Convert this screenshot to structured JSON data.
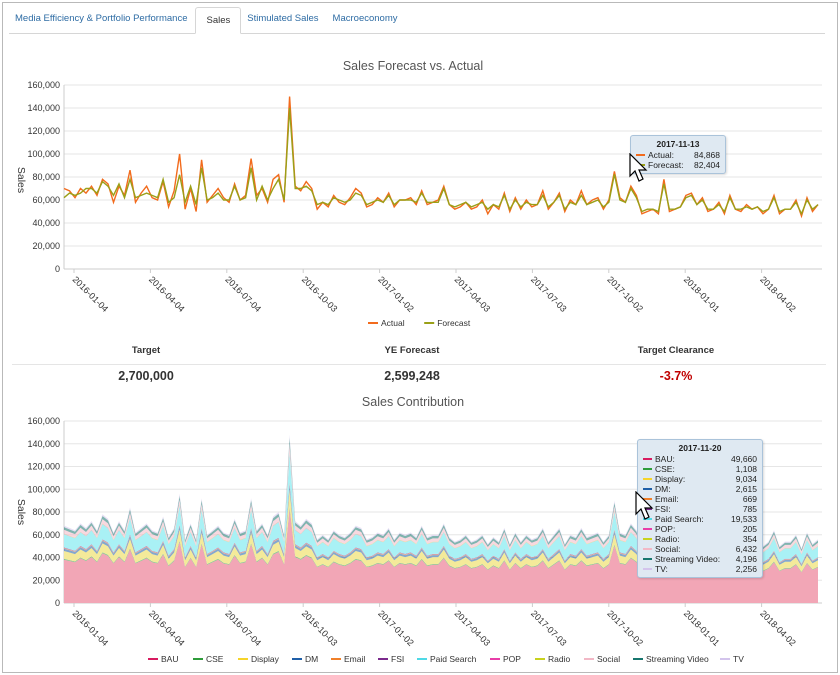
{
  "tabs": [
    {
      "label": "Media Efficiency & Portfolio Performance",
      "active": false
    },
    {
      "label": "Sales",
      "active": true
    },
    {
      "label": "Stimulated Sales",
      "active": false
    },
    {
      "label": "Macroeconomy",
      "active": false
    }
  ],
  "kpis": {
    "target_label": "Target",
    "target_value": "2,700,000",
    "ye_label": "YE Forecast",
    "ye_value": "2,599,248",
    "clearance_label": "Target Clearance",
    "clearance_value": "-3.7%",
    "clearance_color": "#c00000"
  },
  "chart_data": [
    {
      "type": "line",
      "title": "Sales Forecast vs. Actual",
      "ylabel": "Sales",
      "xlabel": "",
      "ylim": [
        0,
        160000
      ],
      "yticks": [
        0,
        20000,
        40000,
        60000,
        80000,
        100000,
        120000,
        140000,
        160000
      ],
      "ytick_labels": [
        "0",
        "20,000",
        "40,000",
        "60,000",
        "80,000",
        "100,000",
        "120,000",
        "140,000",
        "160,000"
      ],
      "xtick_labels": [
        "2016-01-04",
        "2016-04-04",
        "2016-07-04",
        "2016-10-03",
        "2017-01-02",
        "2017-04-03",
        "2017-07-03",
        "2017-10-02",
        "2018-01-01",
        "2018-04-02"
      ],
      "grid": true,
      "legend": "bottom-center",
      "series": [
        {
          "name": "Actual",
          "color": "#f26b1d",
          "values": [
            70000,
            68000,
            62000,
            70000,
            66000,
            72000,
            64000,
            78000,
            74000,
            58000,
            72000,
            64000,
            86000,
            58000,
            66000,
            72000,
            62000,
            60000,
            76000,
            54000,
            68000,
            100000,
            52000,
            70000,
            50000,
            95000,
            58000,
            64000,
            70000,
            62000,
            58000,
            74000,
            60000,
            64000,
            96000,
            64000,
            70000,
            58000,
            78000,
            82000,
            58000,
            150000,
            72000,
            68000,
            76000,
            70000,
            52000,
            58000,
            54000,
            64000,
            58000,
            56000,
            62000,
            70000,
            66000,
            54000,
            56000,
            62000,
            58000,
            66000,
            54000,
            60000,
            60000,
            62000,
            56000,
            68000,
            56000,
            58000,
            60000,
            72000,
            56000,
            52000,
            54000,
            58000,
            52000,
            54000,
            60000,
            48000,
            56000,
            52000,
            66000,
            50000,
            62000,
            52000,
            60000,
            54000,
            56000,
            68000,
            52000,
            58000,
            66000,
            50000,
            60000,
            56000,
            68000,
            56000,
            60000,
            62000,
            52000,
            60000,
            84868,
            62000,
            58000,
            72000,
            64000,
            48000,
            50000,
            52000,
            48000,
            78000,
            50000,
            52000,
            54000,
            64000,
            66000,
            56000,
            62000,
            50000,
            52000,
            58000,
            48000,
            64000,
            52000,
            50000,
            56000,
            52000,
            54000,
            48000,
            52000,
            64000,
            48000,
            52000,
            52000,
            60000,
            46000,
            62000,
            50000,
            56000
          ],
          "y_tooltip": "84,868"
        },
        {
          "name": "Forecast",
          "color": "#9aa018",
          "values": [
            62000,
            66000,
            64000,
            66000,
            70000,
            70000,
            66000,
            76000,
            72000,
            64000,
            74000,
            62000,
            78000,
            62000,
            64000,
            66000,
            64000,
            62000,
            78000,
            58000,
            62000,
            82000,
            58000,
            72000,
            56000,
            88000,
            60000,
            62000,
            66000,
            60000,
            60000,
            72000,
            60000,
            62000,
            88000,
            60000,
            72000,
            60000,
            70000,
            78000,
            60000,
            140000,
            70000,
            70000,
            72000,
            68000,
            56000,
            58000,
            56000,
            62000,
            60000,
            58000,
            60000,
            66000,
            64000,
            56000,
            58000,
            60000,
            58000,
            64000,
            56000,
            60000,
            60000,
            60000,
            58000,
            66000,
            58000,
            58000,
            58000,
            70000,
            56000,
            54000,
            56000,
            58000,
            54000,
            56000,
            58000,
            52000,
            56000,
            54000,
            64000,
            52000,
            60000,
            54000,
            58000,
            56000,
            56000,
            64000,
            54000,
            58000,
            64000,
            52000,
            58000,
            56000,
            64000,
            56000,
            58000,
            60000,
            54000,
            58000,
            82404,
            60000,
            58000,
            70000,
            62000,
            50000,
            52000,
            52000,
            50000,
            74000,
            52000,
            52000,
            54000,
            62000,
            64000,
            56000,
            60000,
            52000,
            52000,
            56000,
            50000,
            62000,
            52000,
            52000,
            54000,
            52000,
            54000,
            50000,
            52000,
            62000,
            50000,
            52000,
            52000,
            58000,
            48000,
            60000,
            52000,
            56000
          ]
        }
      ],
      "tooltip": {
        "title": "2017-11-13",
        "rows": [
          {
            "name": "Actual:",
            "value": "84,868",
            "color": "#f26b1d"
          },
          {
            "name": "Forecast:",
            "value": "82,404",
            "color": "#9aa018"
          }
        ]
      }
    },
    {
      "type": "area",
      "title": "Sales Contribution",
      "ylabel": "Sales",
      "xlabel": "",
      "ylim": [
        0,
        160000
      ],
      "yticks": [
        0,
        20000,
        40000,
        60000,
        80000,
        100000,
        120000,
        140000,
        160000
      ],
      "ytick_labels": [
        "0",
        "20,000",
        "40,000",
        "60,000",
        "80,000",
        "100,000",
        "120,000",
        "140,000",
        "160,000"
      ],
      "xtick_labels": [
        "2016-01-04",
        "2016-04-04",
        "2016-07-04",
        "2016-10-03",
        "2017-01-02",
        "2017-04-03",
        "2017-07-03",
        "2017-10-02",
        "2018-01-01",
        "2018-04-02"
      ],
      "grid": true,
      "stacked": true,
      "legend": "bottom-center",
      "series": [
        {
          "name": "BAU",
          "color": "#d81b60"
        },
        {
          "name": "CSE",
          "color": "#2e9c3a"
        },
        {
          "name": "Display",
          "color": "#f6d42a"
        },
        {
          "name": "DM",
          "color": "#1f5fa8"
        },
        {
          "name": "Email",
          "color": "#f0802a"
        },
        {
          "name": "FSI",
          "color": "#7b2a8c"
        },
        {
          "name": "Paid Search",
          "color": "#4fd9e6"
        },
        {
          "name": "POP",
          "color": "#e83ea8"
        },
        {
          "name": "Radio",
          "color": "#c8d21e"
        },
        {
          "name": "Social",
          "color": "#f2b8c6"
        },
        {
          "name": "Streaming Video",
          "color": "#17766e"
        },
        {
          "name": "TV",
          "color": "#d3c4ec"
        }
      ],
      "totals": [
        68000,
        66000,
        64000,
        70000,
        66000,
        72000,
        64000,
        78000,
        74000,
        62000,
        72000,
        64000,
        84000,
        62000,
        66000,
        70000,
        64000,
        62000,
        76000,
        58000,
        66000,
        96000,
        56000,
        70000,
        56000,
        92000,
        60000,
        64000,
        68000,
        62000,
        60000,
        74000,
        62000,
        64000,
        92000,
        64000,
        70000,
        60000,
        76000,
        80000,
        60000,
        148000,
        72000,
        68000,
        74000,
        70000,
        56000,
        60000,
        56000,
        64000,
        60000,
        58000,
        62000,
        68000,
        66000,
        56000,
        58000,
        62000,
        60000,
        66000,
        56000,
        62000,
        60000,
        62000,
        58000,
        68000,
        58000,
        60000,
        60000,
        70000,
        58000,
        54000,
        56000,
        60000,
        54000,
        56000,
        60000,
        52000,
        58000,
        54000,
        66000,
        52000,
        62000,
        54000,
        60000,
        56000,
        58000,
        66000,
        54000,
        60000,
        66000,
        52000,
        60000,
        58000,
        66000,
        58000,
        60000,
        62000,
        54000,
        60000,
        90000,
        62000,
        60000,
        70000,
        64000,
        52000,
        54000,
        54000,
        50000,
        76000,
        52000,
        54000,
        56000,
        64000,
        66000,
        58000,
        62000,
        52000,
        54000,
        58000,
        50000,
        64000,
        54000,
        52000,
        56000,
        54000,
        56000,
        50000,
        54000,
        64000,
        50000,
        54000,
        54000,
        60000,
        48000,
        62000,
        52000,
        56000
      ],
      "tooltip": {
        "title": "2017-11-20",
        "rows": [
          {
            "name": "BAU:",
            "value": "49,660",
            "color": "#d81b60"
          },
          {
            "name": "CSE:",
            "value": "1,108",
            "color": "#2e9c3a"
          },
          {
            "name": "Display:",
            "value": "9,034",
            "color": "#f6d42a"
          },
          {
            "name": "DM:",
            "value": "2,615",
            "color": "#1f5fa8"
          },
          {
            "name": "Email:",
            "value": "669",
            "color": "#f0802a"
          },
          {
            "name": "FSI:",
            "value": "785",
            "color": "#7b2a8c"
          },
          {
            "name": "Paid Search:",
            "value": "19,533",
            "color": "#4fd9e6"
          },
          {
            "name": "POP:",
            "value": "205",
            "color": "#e83ea8"
          },
          {
            "name": "Radio:",
            "value": "354",
            "color": "#c8d21e"
          },
          {
            "name": "Social:",
            "value": "6,432",
            "color": "#f2b8c6"
          },
          {
            "name": "Streaming Video:",
            "value": "4,196",
            "color": "#17766e"
          },
          {
            "name": "TV:",
            "value": "2,256",
            "color": "#d3c4ec"
          }
        ]
      }
    }
  ]
}
